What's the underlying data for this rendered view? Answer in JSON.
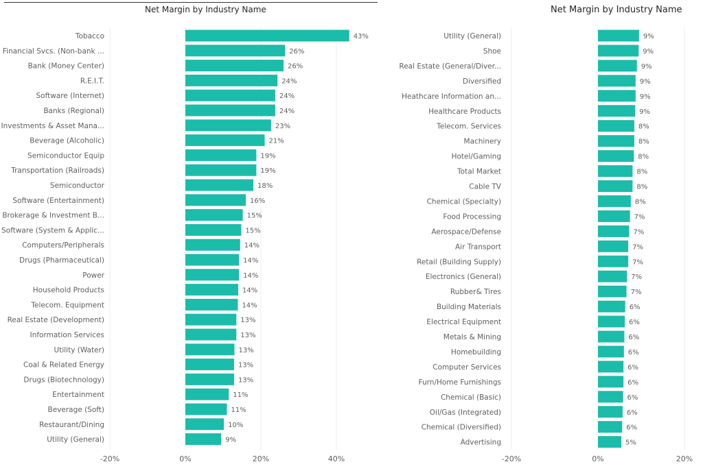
{
  "colors": {
    "bar": "#1bbcaa",
    "grid": "#eeeeee",
    "text": "#605e5c"
  },
  "chart_data": [
    {
      "type": "bar",
      "orientation": "horizontal",
      "title": "Net Margin by Industry Name",
      "xlim": [
        -20,
        50
      ],
      "ticks": [
        "-20%",
        "0%",
        "20%",
        "40%"
      ],
      "tick_values": [
        -20,
        0,
        20,
        40
      ],
      "grid": true,
      "categories": [
        "Tobacco",
        "Financial Svcs. (Non-bank ...",
        "Bank (Money Center)",
        "R.E.I.T.",
        "Software (Internet)",
        "Banks (Regional)",
        "Investments & Asset Mana...",
        "Beverage (Alcoholic)",
        "Semiconductor Equip",
        "Transportation (Railroads)",
        "Semiconductor",
        "Software (Entertainment)",
        "Brokerage & Investment B...",
        "Software (System & Applic...",
        "Computers/Peripherals",
        "Drugs (Pharmaceutical)",
        "Power",
        "Household Products",
        "Telecom. Equipment",
        "Real Estate (Development)",
        "Information Services",
        "Utility (Water)",
        "Coal & Related Energy",
        "Drugs (Biotechnology)",
        "Entertainment",
        "Beverage (Soft)",
        "Restaurant/Dining",
        "Utility (General)"
      ],
      "values": [
        43.4,
        26.4,
        26.0,
        24.4,
        23.8,
        23.8,
        22.7,
        21.0,
        18.8,
        18.8,
        18.0,
        16.0,
        15.2,
        14.8,
        14.5,
        14.2,
        14.2,
        14.0,
        13.9,
        13.5,
        13.5,
        13.0,
        12.9,
        12.9,
        11.5,
        11.0,
        10.2,
        9.5
      ],
      "labels": [
        "43%",
        "26%",
        "26%",
        "24%",
        "24%",
        "24%",
        "23%",
        "21%",
        "19%",
        "19%",
        "18%",
        "16%",
        "15%",
        "15%",
        "14%",
        "14%",
        "14%",
        "14%",
        "14%",
        "13%",
        "13%",
        "13%",
        "13%",
        "13%",
        "11%",
        "11%",
        "10%",
        "9%"
      ]
    },
    {
      "type": "bar",
      "orientation": "horizontal",
      "title": "Net Margin by Industry Name",
      "xlim": [
        -20,
        20
      ],
      "ticks": [
        "-20%",
        "0%",
        "20%"
      ],
      "tick_values": [
        -20,
        0,
        20
      ],
      "grid": true,
      "categories": [
        "Utility (General)",
        "Shoe",
        "Real Estate (General/Diver...",
        "Diversified",
        "Heathcare Information an...",
        "Healthcare Products",
        "Telecom. Services",
        "Machinery",
        "Hotel/Gaming",
        "Total Market",
        "Cable TV",
        "Chemical (Specialty)",
        "Food Processing",
        "Aerospace/Defense",
        "Air Transport",
        "Retail (Building Supply)",
        "Electronics (General)",
        "Rubber& Tires",
        "Building Materials",
        "Electrical Equipment",
        "Metals & Mining",
        "Homebuilding",
        "Computer Services",
        "Furn/Home Furnishings",
        "Chemical (Basic)",
        "Oil/Gas (Integrated)",
        "Chemical (Diversified)",
        "Advertising"
      ],
      "values": [
        9.5,
        9.4,
        9.0,
        8.7,
        8.7,
        8.6,
        8.4,
        8.4,
        8.3,
        8.0,
        8.0,
        7.6,
        7.4,
        7.2,
        7.0,
        7.0,
        6.7,
        6.6,
        6.3,
        6.2,
        6.1,
        6.0,
        5.9,
        5.9,
        5.8,
        5.7,
        5.6,
        5.4
      ],
      "labels": [
        "9%",
        "9%",
        "9%",
        "9%",
        "9%",
        "9%",
        "8%",
        "8%",
        "8%",
        "8%",
        "8%",
        "8%",
        "7%",
        "7%",
        "7%",
        "7%",
        "7%",
        "7%",
        "6%",
        "6%",
        "6%",
        "6%",
        "6%",
        "6%",
        "6%",
        "6%",
        "6%",
        "5%"
      ]
    }
  ]
}
